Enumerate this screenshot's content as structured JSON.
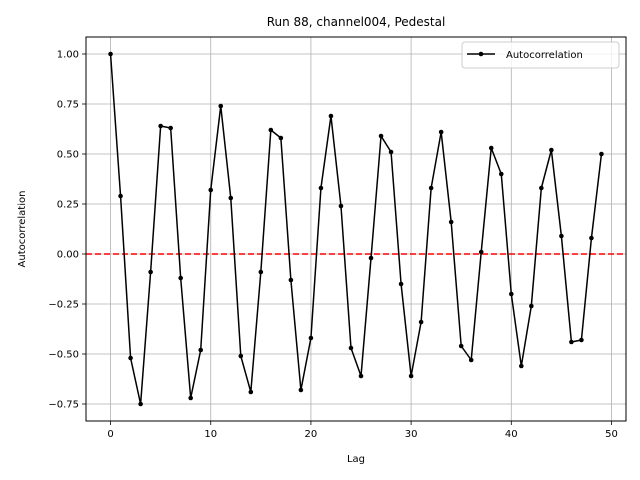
{
  "chart_data": {
    "type": "line",
    "title": "Run 88, channel004, Pedestal",
    "xlabel": "Lag",
    "ylabel": "Autocorrelation",
    "xlim": [
      -2.45,
      51.45
    ],
    "ylim": [
      -0.835,
      1.085
    ],
    "xticks": [
      0,
      10,
      20,
      30,
      40,
      50
    ],
    "yticks": [
      -0.75,
      -0.5,
      -0.25,
      0.0,
      0.25,
      0.5,
      0.75,
      1.0
    ],
    "ytick_labels": [
      "−0.75",
      "−0.50",
      "−0.25",
      "0.00",
      "0.25",
      "0.50",
      "0.75",
      "1.00"
    ],
    "grid": true,
    "legend_position": "upper right",
    "reference_line": {
      "y": 0.0,
      "color": "#ff0000",
      "style": "dashed"
    },
    "series": [
      {
        "name": "Autocorrelation",
        "color": "#000000",
        "marker": "circle",
        "x": [
          0,
          1,
          2,
          3,
          4,
          5,
          6,
          7,
          8,
          9,
          10,
          11,
          12,
          13,
          14,
          15,
          16,
          17,
          18,
          19,
          20,
          21,
          22,
          23,
          24,
          25,
          26,
          27,
          28,
          29,
          30,
          31,
          32,
          33,
          34,
          35,
          36,
          37,
          38,
          39,
          40,
          41,
          42,
          43,
          44,
          45,
          46,
          47,
          48,
          49
        ],
        "values": [
          1.0,
          0.29,
          -0.52,
          -0.75,
          -0.09,
          0.64,
          0.63,
          -0.12,
          -0.72,
          -0.48,
          0.32,
          0.74,
          0.28,
          -0.51,
          -0.69,
          -0.09,
          0.62,
          0.58,
          -0.13,
          -0.68,
          -0.42,
          0.33,
          0.69,
          0.24,
          -0.47,
          -0.61,
          -0.02,
          0.59,
          0.51,
          -0.15,
          -0.61,
          -0.34,
          0.33,
          0.61,
          0.16,
          -0.46,
          -0.53,
          0.01,
          0.53,
          0.4,
          -0.2,
          -0.56,
          -0.26,
          0.33,
          0.52,
          0.09,
          -0.44,
          -0.43,
          0.08,
          0.5
        ]
      }
    ]
  }
}
